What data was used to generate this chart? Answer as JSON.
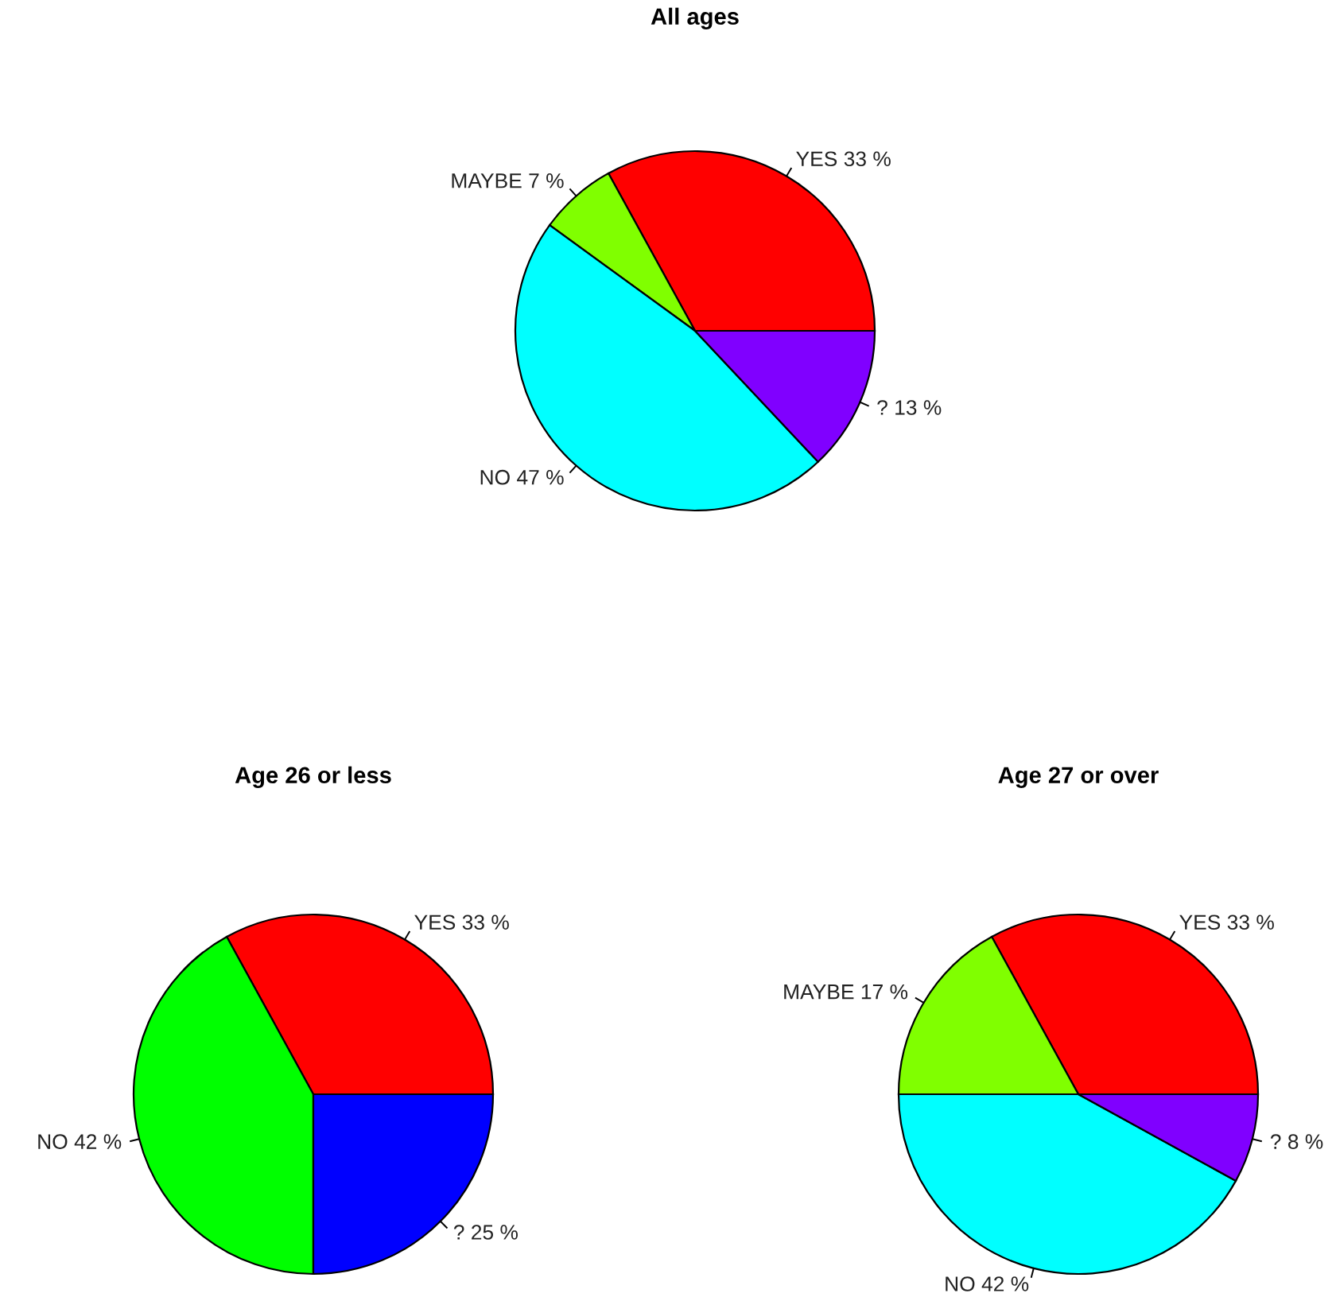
{
  "chart_data": [
    {
      "type": "pie",
      "title": "All ages",
      "categories": [
        "YES",
        "MAYBE",
        "NO",
        "?"
      ],
      "values": [
        33,
        7,
        47,
        13
      ],
      "value_labels": [
        "33 %",
        "7 %",
        "47 %",
        "13 %"
      ],
      "colors": [
        "#ff0000",
        "#80ff00",
        "#00ffff",
        "#8000ff"
      ]
    },
    {
      "type": "pie",
      "title": "Age 26 or less",
      "categories": [
        "YES",
        "NO",
        "?"
      ],
      "values": [
        33,
        42,
        25
      ],
      "value_labels": [
        "33 %",
        "42 %",
        "25 %"
      ],
      "colors": [
        "#ff0000",
        "#00ff00",
        "#0000ff"
      ]
    },
    {
      "type": "pie",
      "title": "Age 27 or over",
      "categories": [
        "YES",
        "MAYBE",
        "NO",
        "?"
      ],
      "values": [
        33,
        17,
        42,
        8
      ],
      "value_labels": [
        "33 %",
        "17 %",
        "42 %",
        "8 %"
      ],
      "colors": [
        "#ff0000",
        "#80ff00",
        "#00ffff",
        "#8000ff"
      ]
    }
  ]
}
